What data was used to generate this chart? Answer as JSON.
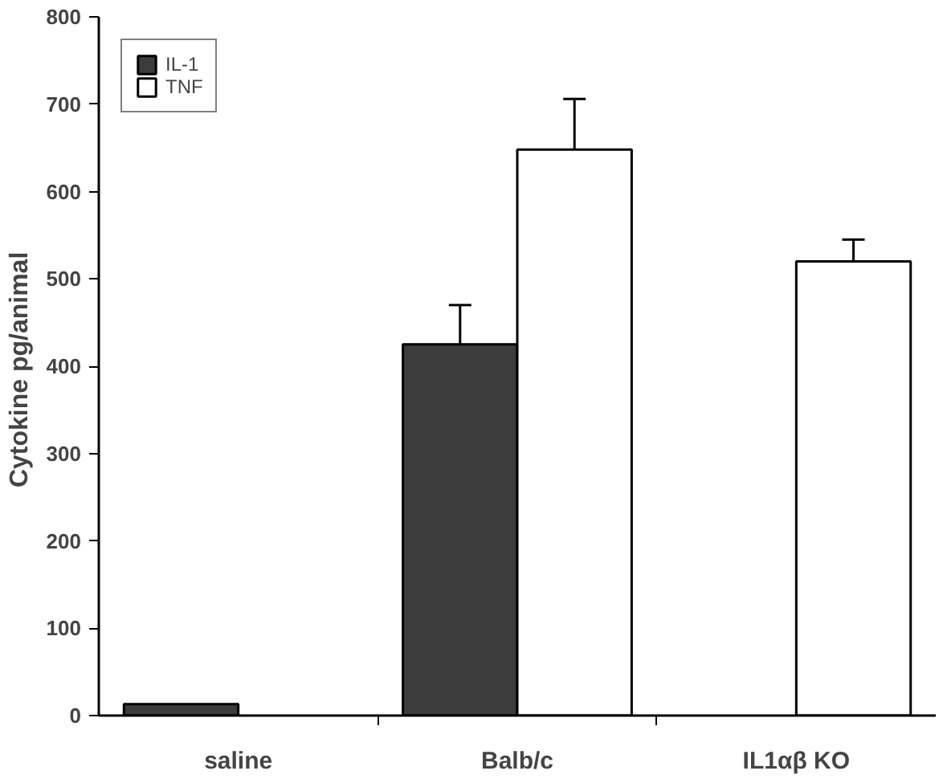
{
  "chart_data": {
    "type": "bar",
    "ylabel": "Cytokine  pg/animal",
    "categories": [
      "saline",
      "Balb/c",
      "IL1αβ KO"
    ],
    "series": [
      {
        "name": "IL-1",
        "color": "#3c3c3c",
        "values": [
          13,
          425,
          null
        ],
        "errors": [
          null,
          45,
          null
        ]
      },
      {
        "name": "TNF",
        "color": "#ffffff",
        "values": [
          null,
          648,
          520
        ],
        "errors": [
          null,
          58,
          25
        ]
      }
    ],
    "ylim": [
      0,
      800
    ],
    "yticks": [
      0,
      100,
      200,
      300,
      400,
      500,
      600,
      700,
      800
    ],
    "grid": false,
    "legend": "top left"
  }
}
